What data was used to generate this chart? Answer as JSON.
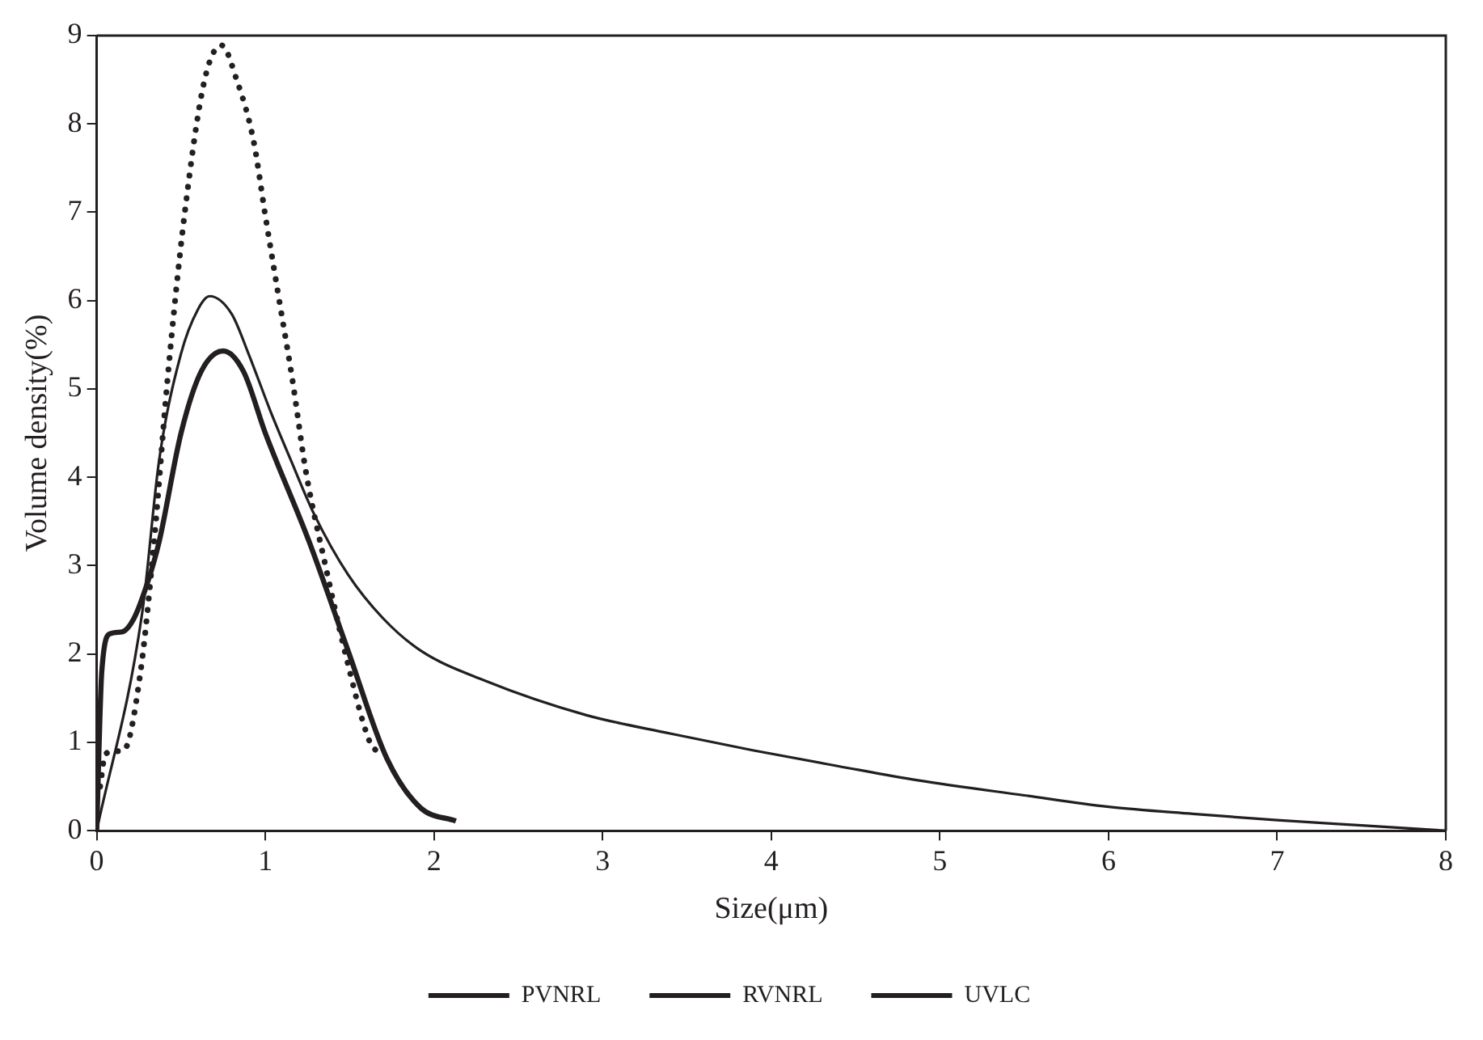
{
  "chart_data": {
    "type": "line",
    "xlabel": "Size(μm)",
    "ylabel": "Volume density(%)",
    "xlim": [
      0,
      8
    ],
    "ylim": [
      0,
      9
    ],
    "xticks": [
      0,
      1,
      2,
      3,
      4,
      5,
      6,
      7,
      8
    ],
    "yticks": [
      0,
      1,
      2,
      3,
      4,
      5,
      6,
      7,
      8,
      9
    ],
    "grid": false,
    "legend": "bottom",
    "marker": "none",
    "series": [
      {
        "name": "PVNRL",
        "color": "#231f20",
        "line_style": "solid",
        "x": [
          0,
          0.27,
          0.37,
          0.5,
          0.6,
          0.67,
          0.8,
          0.9,
          1.03,
          1.15,
          1.29,
          1.49,
          1.7,
          1.92,
          2.3,
          2.9,
          3.4,
          3.89,
          4.4,
          4.87,
          5.5,
          6,
          6.5,
          7,
          7.5,
          8
        ],
        "values": [
          0,
          2.47,
          4.19,
          5.4,
          5.9,
          6.05,
          5.85,
          5.4,
          4.75,
          4.2,
          3.58,
          2.9,
          2.4,
          2.04,
          1.7,
          1.31,
          1.1,
          0.91,
          0.73,
          0.57,
          0.4,
          0.27,
          0.19,
          0.12,
          0.06,
          0
        ]
      },
      {
        "name": "RVNRL",
        "color": "#231f20",
        "line_style": "dotted",
        "x": [
          0.02,
          0.05,
          0.1,
          0.16,
          0.26,
          0.34,
          0.42,
          0.52,
          0.64,
          0.74,
          0.83,
          0.93,
          1.0,
          1.08,
          1.16,
          1.24,
          1.36,
          1.47,
          1.62,
          1.66
        ],
        "values": [
          0.5,
          0.86,
          0.9,
          0.91,
          1.8,
          3.27,
          5.11,
          6.96,
          8.5,
          8.89,
          8.5,
          7.81,
          6.96,
          6.03,
          5.11,
          4.07,
          2.97,
          2.04,
          1.0,
          0.9
        ]
      },
      {
        "name": "UVLC",
        "color": "#231f20",
        "line_style": "solid",
        "x": [
          0,
          0.03,
          0.08,
          0.15,
          0.22,
          0.3,
          0.37,
          0.5,
          0.62,
          0.75,
          0.87,
          1.0,
          1.26,
          1.49,
          1.72,
          1.92,
          2.13
        ],
        "values": [
          0,
          1.8,
          2.23,
          2.25,
          2.4,
          2.8,
          3.27,
          4.5,
          5.2,
          5.43,
          5.2,
          4.5,
          3.27,
          2.04,
          0.82,
          0.26,
          0.11
        ]
      }
    ]
  }
}
